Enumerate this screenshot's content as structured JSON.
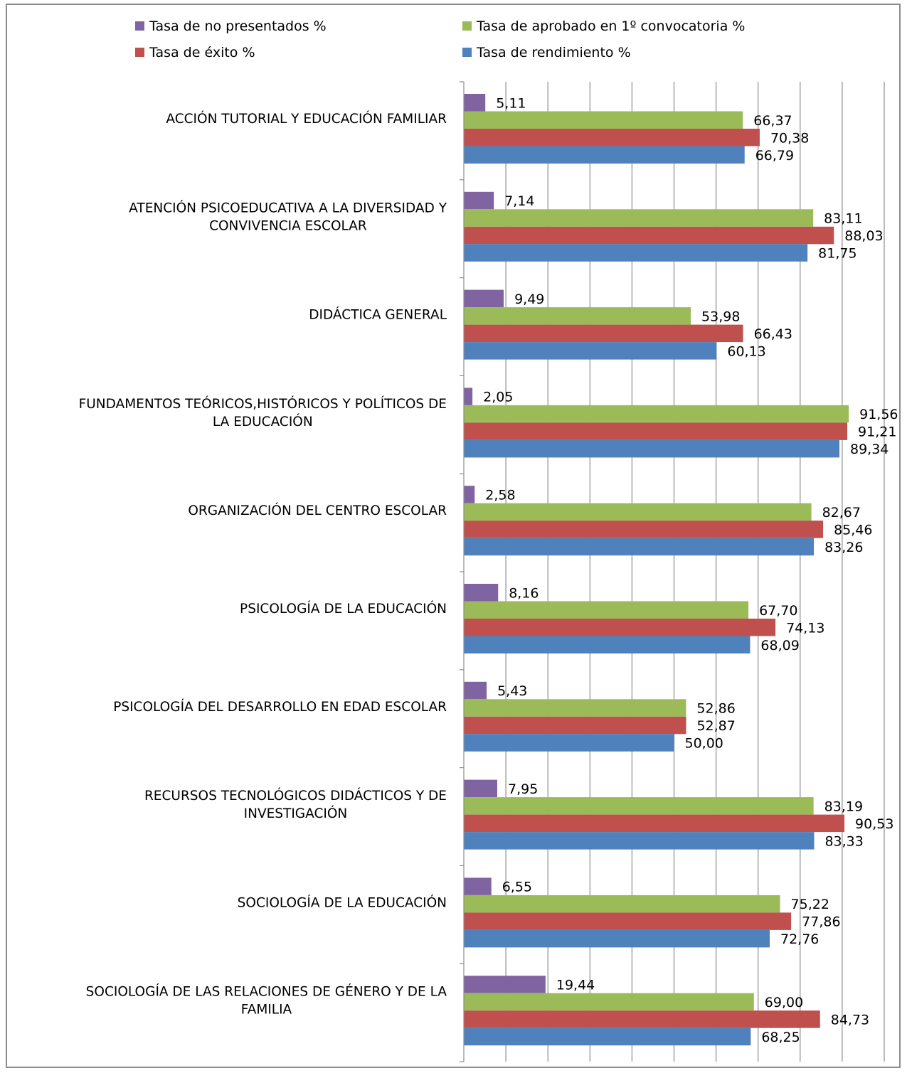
{
  "chart_data": {
    "type": "bar",
    "orientation": "horizontal",
    "title": "",
    "xlabel": "",
    "ylabel": "",
    "xlim": [
      0,
      100
    ],
    "grid": true,
    "legend_position": "top",
    "categories": [
      [
        "ACCIÓN TUTORIAL Y EDUCACIÓN FAMILIAR"
      ],
      [
        "ATENCIÓN PSICOEDUCATIVA A LA DIVERSIDAD Y",
        "CONVIVENCIA ESCOLAR"
      ],
      [
        "DIDÁCTICA GENERAL"
      ],
      [
        "FUNDAMENTOS TEÓRICOS,HISTÓRICOS Y POLÍTICOS DE",
        "LA EDUCACIÓN"
      ],
      [
        "ORGANIZACIÓN DEL CENTRO ESCOLAR"
      ],
      [
        "PSICOLOGÍA DE LA EDUCACIÓN"
      ],
      [
        "PSICOLOGÍA DEL DESARROLLO EN EDAD ESCOLAR"
      ],
      [
        "RECURSOS TECNOLÓGICOS DIDÁCTICOS Y DE",
        "INVESTIGACIÓN"
      ],
      [
        "SOCIOLOGÍA DE LA EDUCACIÓN"
      ],
      [
        "SOCIOLOGÍA DE LAS RELACIONES DE GÉNERO Y DE LA",
        "FAMILIA"
      ]
    ],
    "series": [
      {
        "name": "Tasa de no presentados %",
        "color": "#8064a2",
        "values": [
          5.11,
          7.14,
          9.49,
          2.05,
          2.58,
          8.16,
          5.43,
          7.95,
          6.55,
          19.44
        ],
        "labels": [
          "5,11",
          "7,14",
          "9,49",
          "2,05",
          "2,58",
          "8,16",
          "5,43",
          "7,95",
          "6,55",
          "19,44"
        ]
      },
      {
        "name": "Tasa de aprobado en 1º convocatoria %",
        "color": "#9bbb59",
        "values": [
          66.37,
          83.11,
          53.98,
          91.56,
          82.67,
          67.7,
          52.86,
          83.19,
          75.22,
          69.0
        ],
        "labels": [
          "66,37",
          "83,11",
          "53,98",
          "91,56",
          "82,67",
          "67,70",
          "52,86",
          "83,19",
          "75,22",
          "69,00"
        ]
      },
      {
        "name": "Tasa de éxito %",
        "color": "#c0504d",
        "values": [
          70.38,
          88.03,
          66.43,
          91.21,
          85.46,
          74.13,
          52.87,
          90.53,
          77.86,
          84.73
        ],
        "labels": [
          "70,38",
          "88,03",
          "66,43",
          "91,21",
          "85,46",
          "74,13",
          "52,87",
          "90,53",
          "77,86",
          "84,73"
        ]
      },
      {
        "name": "Tasa de rendimiento %",
        "color": "#4f81bd",
        "values": [
          66.79,
          81.75,
          60.13,
          89.34,
          83.26,
          68.09,
          50.0,
          83.33,
          72.76,
          68.25
        ],
        "labels": [
          "66,79",
          "81,75",
          "60,13",
          "89,34",
          "83,26",
          "68,09",
          "50,00",
          "83,33",
          "72,76",
          "68,25"
        ]
      }
    ],
    "legend_order": [
      0,
      1,
      2,
      3
    ]
  }
}
